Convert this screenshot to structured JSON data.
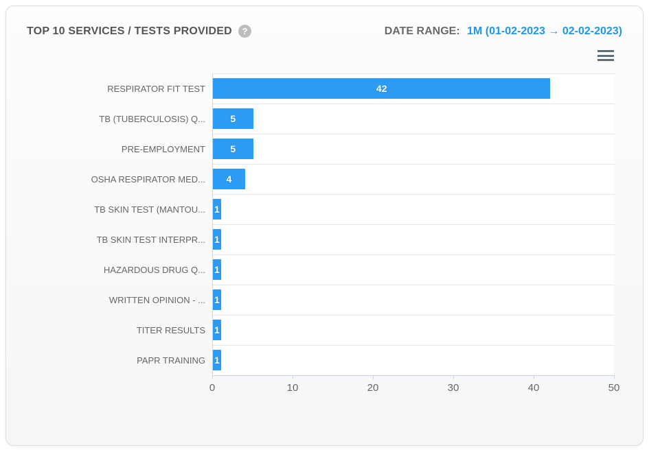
{
  "card": {
    "title": "TOP 10 SERVICES / TESTS PROVIDED",
    "date_range_label": "DATE RANGE:",
    "date_range_value": "1M (01-02-2023 → 02-02-2023)"
  },
  "icons": {
    "help_glyph": "?",
    "help_name": "question-mark-circle",
    "menu_name": "hamburger-menu"
  },
  "colors": {
    "bar_blue": "#2b9bf4",
    "date_blue": "#1e96ea",
    "title_gray": "#555555",
    "label_gray": "#666666",
    "gridline": "#e6e6e6",
    "axis": "#ccd6eb",
    "burger_gray": "#5d6f7d"
  },
  "chart_data": {
    "type": "bar",
    "orientation": "horizontal",
    "title": "TOP 10 SERVICES / TESTS PROVIDED",
    "categories": [
      "RESPIRATOR FIT TEST",
      "TB (TUBERCULOSIS) Q...",
      "PRE-EMPLOYMENT",
      "OSHA RESPIRATOR MED...",
      "TB SKIN TEST (MANTOU...",
      "TB SKIN TEST INTERPR...",
      "HAZARDOUS DRUG Q...",
      "WRITTEN OPINION - ...",
      "TITER RESULTS",
      "PAPR TRAINING"
    ],
    "values": [
      42,
      5,
      5,
      4,
      1,
      1,
      1,
      1,
      1,
      1
    ],
    "xlim": [
      0,
      50
    ],
    "x_ticks": [
      "0",
      "10",
      "20",
      "30",
      "40",
      "50"
    ],
    "xlabel": "",
    "ylabel": "",
    "grid": true,
    "data_labels": true,
    "legend": "none"
  }
}
